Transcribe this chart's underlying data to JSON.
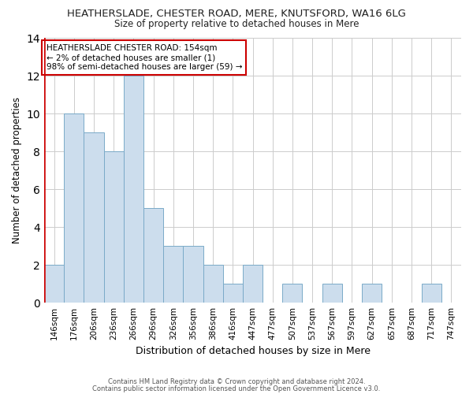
{
  "title1": "HEATHERSLADE, CHESTER ROAD, MERE, KNUTSFORD, WA16 6LG",
  "title2": "Size of property relative to detached houses in Mere",
  "xlabel": "Distribution of detached houses by size in Mere",
  "ylabel": "Number of detached properties",
  "footnote1": "Contains HM Land Registry data © Crown copyright and database right 2024.",
  "footnote2": "Contains public sector information licensed under the Open Government Licence v3.0.",
  "annotation_line1": "HEATHERSLADE CHESTER ROAD: 154sqm",
  "annotation_line2": "← 2% of detached houses are smaller (1)",
  "annotation_line3": "98% of semi-detached houses are larger (59) →",
  "bar_labels": [
    "146sqm",
    "176sqm",
    "206sqm",
    "236sqm",
    "266sqm",
    "296sqm",
    "326sqm",
    "356sqm",
    "386sqm",
    "416sqm",
    "447sqm",
    "477sqm",
    "507sqm",
    "537sqm",
    "567sqm",
    "597sqm",
    "627sqm",
    "657sqm",
    "687sqm",
    "717sqm",
    "747sqm"
  ],
  "bar_values": [
    2,
    10,
    9,
    8,
    12,
    5,
    3,
    3,
    2,
    1,
    2,
    0,
    1,
    0,
    1,
    0,
    1,
    0,
    0,
    1,
    0
  ],
  "bar_color": "#ccdded",
  "bar_edge_color": "#7aaac8",
  "highlight_color": "#cc0000",
  "annotation_box_color": "#ffffff",
  "annotation_border_color": "#cc0000",
  "ylim": [
    0,
    14
  ],
  "yticks": [
    0,
    2,
    4,
    6,
    8,
    10,
    12,
    14
  ],
  "grid_color": "#cccccc",
  "bg_color": "#ffffff"
}
